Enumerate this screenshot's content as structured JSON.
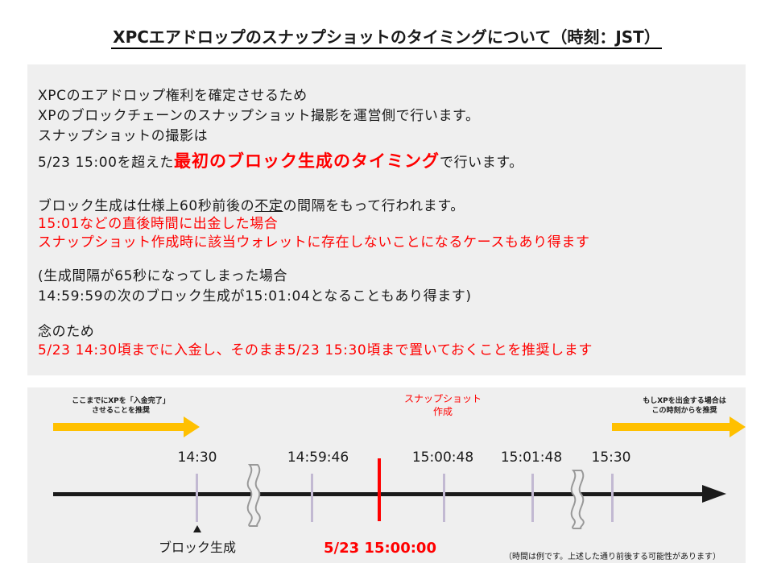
{
  "title": "XPCエアドロップのスナップショットのタイミングについて（時刻：JST）",
  "info": {
    "line1": "XPCのエアドロップ権利を確定させるため",
    "line2": "XPのブロックチェーンのスナップショット撮影を運営側で行います。",
    "line3": "スナップショットの撮影は",
    "line4_pre": "5/23  15:00を超えた",
    "line4_emph": "最初のブロック生成のタイミング",
    "line4_post": "で行います。",
    "line5_pre": "ブロック生成は仕様上60秒前後の",
    "line5_ul": "不定",
    "line5_post": "の間隔をもって行われます。",
    "line6": "15:01などの直後時間に出金した場合",
    "line7": "スナップショット作成時に該当ウォレットに存在しないことになるケースもあり得ます",
    "line8": "(生成間隔が65秒になってしまった場合",
    "line9": "14:59:59の次のブロック生成が15:01:04となることもあり得ます)",
    "line10": "念のため",
    "line11": "5/23 14:30頃までに入金し、そのまま5/23 15:30頃まで置いておくことを推奨します"
  },
  "timeline": {
    "left_note_line1": "ここまでにXPを「入金完了」",
    "left_note_line2": "させることを推奨",
    "right_note_line1": "もしXPを出金する場合は",
    "right_note_line2": "この時刻からを推奨",
    "snapshot_line1": "スナップショット",
    "snapshot_line2": "作成",
    "times": [
      "14:30",
      "14:59:46",
      "15:00:48",
      "15:01:48",
      "15:30"
    ],
    "date": "5/23 15:00:00",
    "block_label": "ブロック生成",
    "footnote": "（時間は例です。上述した通り前後する可能性があります）",
    "colors": {
      "accent_red": "#ff0000",
      "arrow_orange": "#ffc000",
      "tick_lavender": "#c2b9d2"
    }
  }
}
